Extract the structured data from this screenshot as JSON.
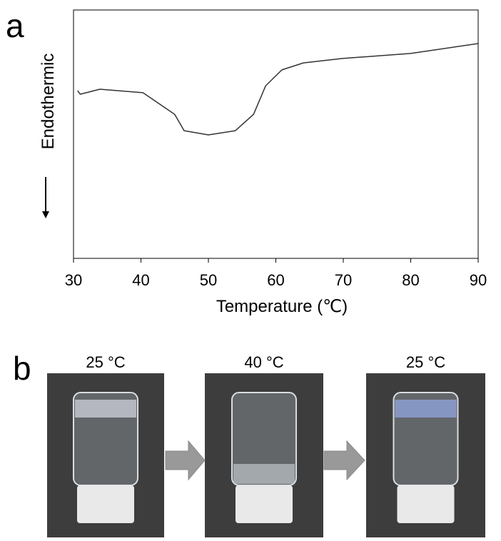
{
  "panel_a_label": "a",
  "panel_b_label": "b",
  "chart_data": {
    "type": "line",
    "x_label": "Temperature (℃)",
    "y_label": "Endothermic",
    "x": [
      30.6,
      31.0,
      33.9,
      40.3,
      45.0,
      46.4,
      50.0,
      54.0,
      56.7,
      58.5,
      60.9,
      64.1,
      69.9,
      80,
      90
    ],
    "values": [
      67.5,
      66.1,
      68.1,
      66.7,
      58.0,
      51.4,
      49.7,
      51.4,
      58.0,
      69.5,
      75.9,
      78.7,
      80.5,
      82.5,
      86.5
    ],
    "color": "#333333",
    "xlim": [
      30,
      90
    ],
    "ylim": [
      0,
      100
    ],
    "xticks": [
      30,
      40,
      50,
      60,
      70,
      80,
      90
    ]
  },
  "photos": [
    {
      "label": "25 °C"
    },
    {
      "label": "40 °C"
    },
    {
      "label": "25 °C"
    }
  ]
}
